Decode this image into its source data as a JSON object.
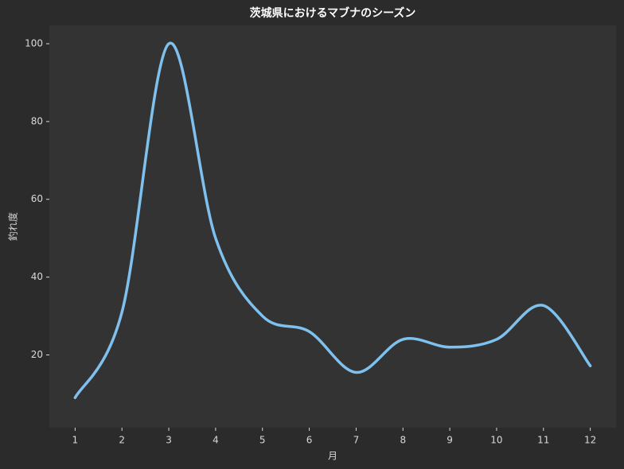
{
  "chart_data": {
    "type": "line",
    "title": "茨城県におけるマブナのシーズン",
    "x_label": "月",
    "y_label": "釣れ度",
    "x": [
      1,
      2,
      3,
      4,
      5,
      6,
      7,
      8,
      9,
      10,
      11,
      12
    ],
    "series": [
      {
        "name": "釣れ度",
        "color": "#7fc1ee",
        "values": [
          9,
          31,
          100,
          50,
          30,
          26,
          15.5,
          24,
          22,
          24,
          32.7,
          17.2
        ]
      }
    ],
    "xlim": [
      0.45,
      12.55
    ],
    "ylim": [
      1.3,
      104.7
    ],
    "xticks": [
      1,
      2,
      3,
      4,
      5,
      6,
      7,
      8,
      9,
      10,
      11,
      12
    ],
    "yticks": [
      20,
      40,
      60,
      80,
      100
    ],
    "grid": false
  }
}
